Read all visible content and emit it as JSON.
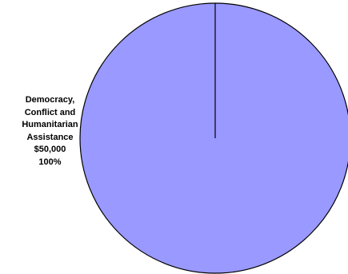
{
  "chart_data": {
    "type": "pie",
    "slices": [
      {
        "label_lines": [
          "Democracy,",
          "Conflict and",
          "Humanitarian",
          "Assistance"
        ],
        "value_text": "$50,000",
        "percent_text": "100%",
        "value": 50000,
        "percent": 100,
        "color": "#9999ff"
      }
    ],
    "outline_color": "#000000",
    "background": "#ffffff"
  }
}
